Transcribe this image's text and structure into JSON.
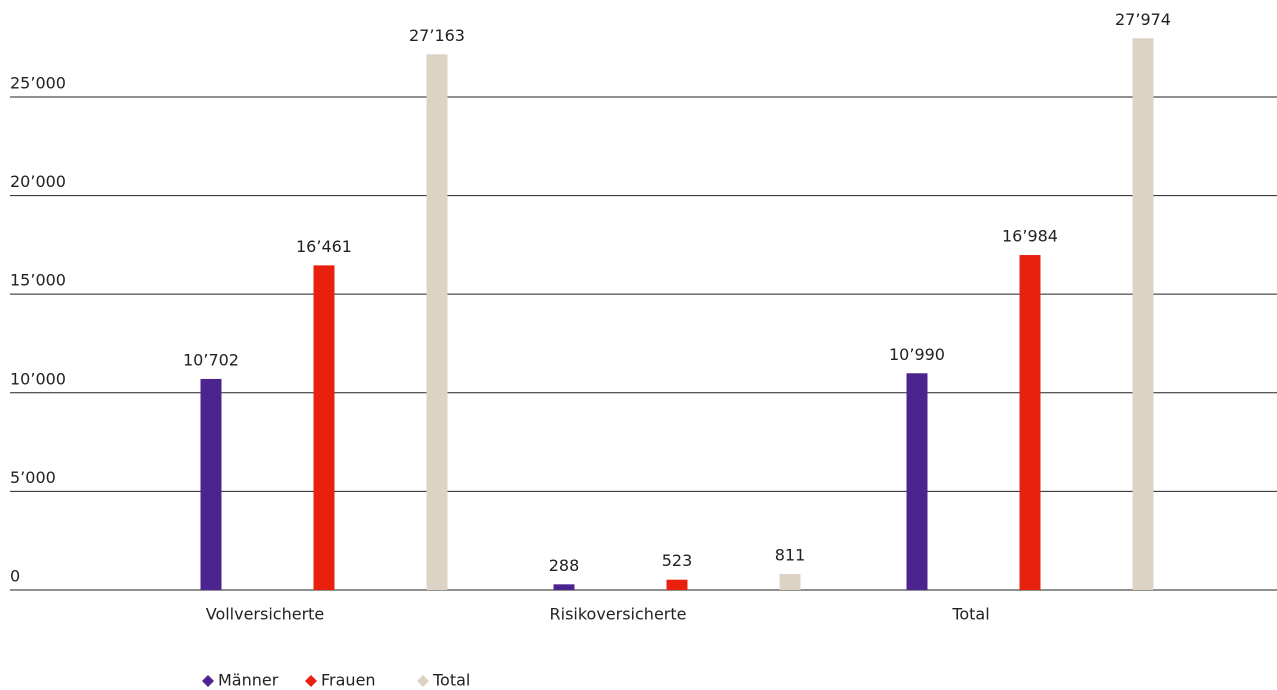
{
  "chart_data": {
    "type": "bar",
    "categories": [
      "Vollversicherte",
      "Risikoversicherte",
      "Total"
    ],
    "series": [
      {
        "name": "Männer",
        "color": "#4b2490",
        "values": [
          10702,
          288,
          10990
        ],
        "value_labels": [
          "10’702",
          "288",
          "10’990"
        ]
      },
      {
        "name": "Frauen",
        "color": "#e8200e",
        "values": [
          16461,
          523,
          16984
        ],
        "value_labels": [
          "16’461",
          "523",
          "16’984"
        ]
      },
      {
        "name": "Total",
        "color": "#dcd3c5",
        "values": [
          27163,
          811,
          27974
        ],
        "value_labels": [
          "27’163",
          "811",
          "27’974"
        ]
      }
    ],
    "ylim": [
      0,
      28000
    ],
    "yticks": [
      0,
      {
        "value": 5000,
        "label": "5’000"
      },
      {
        "value": 10000,
        "label": "10’000"
      },
      {
        "value": 15000,
        "label": "15’000"
      },
      {
        "value": 20000,
        "label": "20’000"
      },
      {
        "value": 25000,
        "label": "25’000"
      }
    ],
    "grid": true,
    "legend": "bottom"
  }
}
